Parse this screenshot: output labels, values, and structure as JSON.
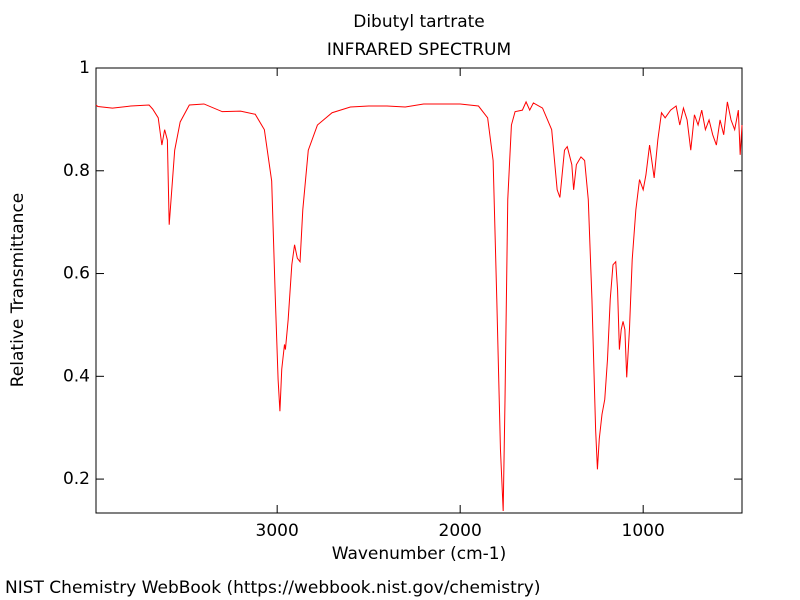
{
  "chart_data": {
    "type": "line",
    "title": "Dibutyl tartrate",
    "subtitle": "INFRARED SPECTRUM",
    "x_label": "Wavenumber (cm-1)",
    "y_label": "Relative Transmittance",
    "footer": "NIST Chemistry WebBook (https://webbook.nist.gov/chemistry)",
    "xlim": [
      3990,
      460
    ],
    "ylim": [
      0.134,
      1
    ],
    "xticks": [
      3000,
      2000,
      1000
    ],
    "yticks": [
      0.2,
      0.4,
      0.6,
      0.8,
      1
    ],
    "grid": false,
    "x": [
      3990,
      3980,
      3900,
      3800,
      3700,
      3680,
      3650,
      3630,
      3615,
      3600,
      3590,
      3560,
      3530,
      3480,
      3400,
      3300,
      3200,
      3120,
      3070,
      3030,
      3010,
      2995,
      2985,
      2975,
      2960,
      2955,
      2940,
      2920,
      2905,
      2890,
      2875,
      2860,
      2830,
      2780,
      2700,
      2600,
      2500,
      2400,
      2300,
      2200,
      2100,
      2000,
      1900,
      1850,
      1820,
      1800,
      1780,
      1765,
      1755,
      1740,
      1720,
      1700,
      1660,
      1640,
      1620,
      1600,
      1550,
      1500,
      1470,
      1455,
      1430,
      1415,
      1390,
      1380,
      1365,
      1340,
      1320,
      1300,
      1280,
      1260,
      1250,
      1240,
      1225,
      1210,
      1195,
      1180,
      1165,
      1150,
      1140,
      1130,
      1120,
      1110,
      1100,
      1090,
      1075,
      1060,
      1040,
      1020,
      1000,
      985,
      965,
      950,
      940,
      920,
      900,
      880,
      850,
      820,
      800,
      780,
      760,
      740,
      720,
      700,
      680,
      660,
      640,
      620,
      600,
      580,
      560,
      540,
      520,
      500,
      480,
      470,
      460
    ],
    "series": [
      {
        "name": "Dibutyl tartrate",
        "color": "#ff0000",
        "values": [
          0.928,
          0.925,
          0.922,
          0.926,
          0.928,
          0.92,
          0.903,
          0.85,
          0.88,
          0.86,
          0.695,
          0.84,
          0.895,
          0.928,
          0.93,
          0.915,
          0.916,
          0.91,
          0.88,
          0.78,
          0.55,
          0.394,
          0.332,
          0.414,
          0.462,
          0.452,
          0.51,
          0.617,
          0.656,
          0.63,
          0.623,
          0.724,
          0.84,
          0.889,
          0.913,
          0.924,
          0.926,
          0.926,
          0.924,
          0.93,
          0.93,
          0.93,
          0.926,
          0.903,
          0.82,
          0.55,
          0.258,
          0.138,
          0.355,
          0.744,
          0.889,
          0.915,
          0.918,
          0.934,
          0.918,
          0.932,
          0.922,
          0.88,
          0.763,
          0.748,
          0.84,
          0.847,
          0.812,
          0.763,
          0.812,
          0.827,
          0.82,
          0.744,
          0.55,
          0.297,
          0.219,
          0.278,
          0.326,
          0.355,
          0.433,
          0.55,
          0.617,
          0.623,
          0.569,
          0.452,
          0.491,
          0.507,
          0.491,
          0.398,
          0.491,
          0.627,
          0.724,
          0.783,
          0.763,
          0.792,
          0.85,
          0.812,
          0.786,
          0.86,
          0.913,
          0.903,
          0.918,
          0.926,
          0.889,
          0.922,
          0.899,
          0.84,
          0.909,
          0.889,
          0.918,
          0.88,
          0.899,
          0.87,
          0.85,
          0.899,
          0.87,
          0.934,
          0.899,
          0.88,
          0.918,
          0.831,
          0.889
        ]
      }
    ]
  }
}
